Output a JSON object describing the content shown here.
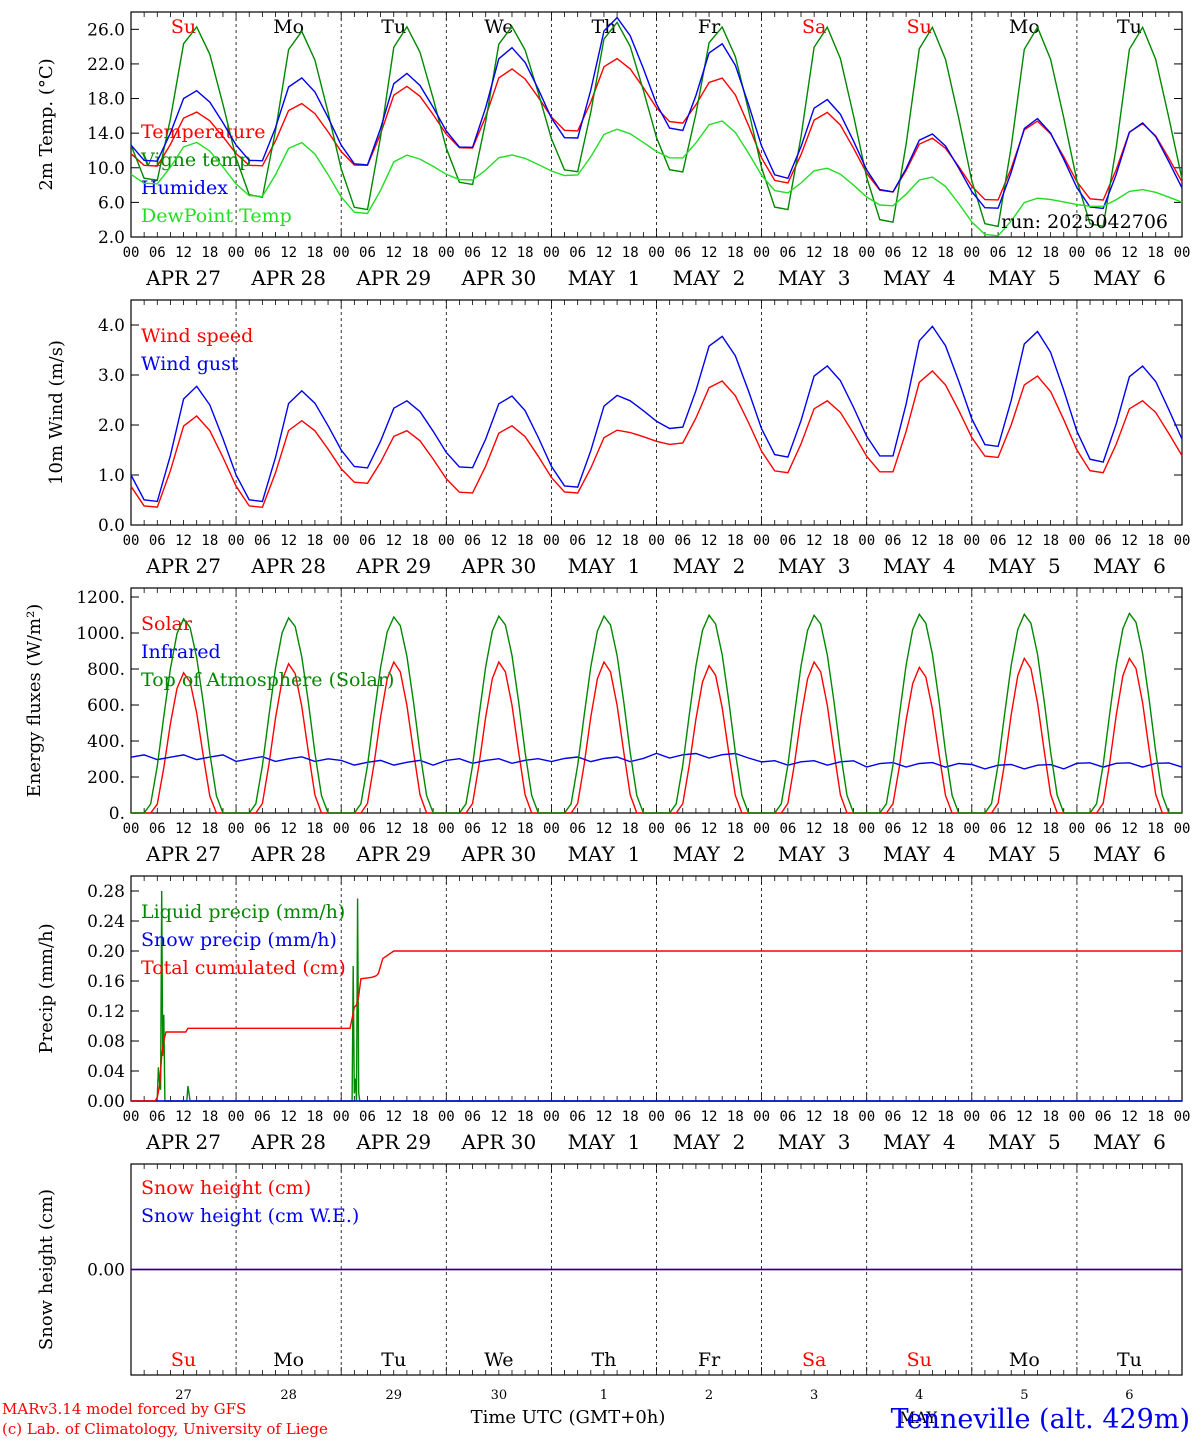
{
  "colors": {
    "red": "#ff0000",
    "blue": "#0000ee",
    "dgreen": "#008800",
    "lgreen": "#22dd22",
    "black": "#000000"
  },
  "run_label": "run: 2025042706",
  "hour_ticks": [
    "00",
    "06",
    "12",
    "18"
  ],
  "date_labels": [
    "APR 27",
    "APR 28",
    "APR 29",
    "APR 30",
    "MAY  1",
    "MAY  2",
    "MAY  3",
    "MAY  4",
    "MAY  5",
    "MAY  6"
  ],
  "weekdays": [
    {
      "label": "Su",
      "color": "#ff0000"
    },
    {
      "label": "Mo",
      "color": "#000000"
    },
    {
      "label": "Tu",
      "color": "#000000"
    },
    {
      "label": "We",
      "color": "#000000"
    },
    {
      "label": "Th",
      "color": "#000000"
    },
    {
      "label": "Fr",
      "color": "#000000"
    },
    {
      "label": "Sa",
      "color": "#ff0000"
    },
    {
      "label": "Su",
      "color": "#ff0000"
    },
    {
      "label": "Mo",
      "color": "#000000"
    },
    {
      "label": "Tu",
      "color": "#000000"
    }
  ],
  "bottom_day_numbers": [
    "27",
    "28",
    "29",
    "30",
    "1",
    "2",
    "3",
    "4",
    "5",
    "6"
  ],
  "footer": {
    "credit_line1": "MARv3.14 model forced by GFS",
    "credit_line2": "(c) Lab. of Climatology, University of Liege",
    "axis_label": "Time UTC (GMT+0h)",
    "month_label": "MAY",
    "station": "Tenneville (alt. 429m)"
  },
  "chart_data": [
    {
      "type": "line",
      "ylabel": "2m Temp. (°C)",
      "ylim": [
        2,
        28
      ],
      "yticks": [
        2,
        6,
        10,
        14,
        18,
        22,
        26
      ],
      "ytick_labels": [
        "2.0",
        "6.0",
        "10.0",
        "14.0",
        "18.0",
        "22.0",
        "26.0"
      ],
      "series": [
        {
          "name": "Temperature",
          "color": "#ff0000",
          "kind": "diurnal",
          "min": [
            10,
            10,
            10,
            12,
            14,
            15,
            8,
            7,
            6,
            6
          ],
          "max": [
            16.5,
            17.5,
            19.5,
            21.5,
            22.7,
            20.5,
            16.5,
            13.5,
            15.5,
            15.2
          ]
        },
        {
          "name": "Vigne temp",
          "color": "#008800",
          "kind": "diurnal",
          "min": [
            8,
            6,
            4.5,
            7.5,
            9,
            9,
            4.5,
            3,
            2.5,
            2.5
          ],
          "max": [
            26.5,
            26,
            26.5,
            26.5,
            27,
            26.5,
            26.5,
            26.5,
            26.5,
            26.5
          ]
        },
        {
          "name": "Humidex",
          "color": "#0000ee",
          "kind": "diurnal",
          "min": [
            10.5,
            10.5,
            10,
            12,
            13,
            14,
            8.5,
            7,
            5,
            5
          ],
          "max": [
            19,
            20.5,
            21,
            24,
            27.5,
            24.5,
            18,
            14,
            15.8,
            15.3
          ]
        },
        {
          "name": "DewPoint Temp",
          "color": "#22dd22",
          "kind": "diurnal",
          "min": [
            8,
            6.5,
            4.5,
            8.5,
            9,
            11,
            7,
            5.5,
            2,
            5.5
          ],
          "max": [
            13,
            13,
            11.5,
            11.5,
            14.5,
            15.5,
            10,
            9,
            6.5,
            7.5
          ]
        }
      ]
    },
    {
      "type": "line",
      "ylabel": "10m Wind (m/s)",
      "ylim": [
        0,
        4.5
      ],
      "yticks": [
        0,
        1,
        2,
        3,
        4
      ],
      "ytick_labels": [
        "0.0",
        "1.0",
        "2.0",
        "3.0",
        "4.0"
      ],
      "series": [
        {
          "name": "Wind speed",
          "color": "#ff0000",
          "kind": "diurnal",
          "min": [
            0.3,
            0.3,
            0.8,
            0.6,
            0.6,
            1.6,
            1.0,
            1.0,
            1.3,
            1.0
          ],
          "max": [
            2.2,
            2.1,
            1.9,
            2.0,
            1.9,
            2.9,
            2.5,
            3.1,
            3.0,
            2.5
          ]
        },
        {
          "name": "Wind gust",
          "color": "#0000ee",
          "kind": "diurnal",
          "min": [
            0.4,
            0.4,
            1.1,
            1.1,
            0.7,
            1.9,
            1.3,
            1.3,
            1.5,
            1.2
          ],
          "max": [
            2.8,
            2.7,
            2.5,
            2.6,
            2.6,
            3.8,
            3.2,
            4.0,
            3.9,
            3.2
          ]
        }
      ]
    },
    {
      "type": "line",
      "ylabel": "Energy fluxes (W/m²)",
      "ylim": [
        0,
        1250
      ],
      "yticks": [
        0,
        200,
        400,
        600,
        800,
        1000,
        1200
      ],
      "ytick_labels": [
        "0.",
        "200.",
        "400.",
        "600.",
        "800.",
        "1000.",
        "1200."
      ],
      "series": [
        {
          "name": "Solar",
          "color": "#ff0000",
          "kind": "solar",
          "peak": [
            780,
            830,
            840,
            840,
            840,
            820,
            840,
            810,
            860,
            860
          ]
        },
        {
          "name": "Infrared",
          "color": "#0000ee",
          "kind": "flat",
          "value": [
            310,
            300,
            280,
            290,
            300,
            320,
            280,
            270,
            260,
            270
          ]
        },
        {
          "name": "Top of Atmosphere (Solar)",
          "color": "#008800",
          "kind": "solar_toa",
          "peak": [
            1080,
            1085,
            1090,
            1095,
            1095,
            1100,
            1100,
            1105,
            1105,
            1110
          ]
        }
      ]
    },
    {
      "type": "line",
      "ylabel": "Precip (mm/h)",
      "ylim": [
        0,
        0.3
      ],
      "yticks": [
        0,
        0.04,
        0.08,
        0.12,
        0.16,
        0.2,
        0.24,
        0.28
      ],
      "ytick_labels": [
        "0.00",
        "0.04",
        "0.08",
        "0.12",
        "0.16",
        "0.20",
        "0.24",
        "0.28"
      ],
      "series": [
        {
          "name": "Liquid precip (mm/h)",
          "color": "#008800",
          "kind": "points",
          "x": [
            0,
            66,
            69,
            72,
            75,
            78,
            81,
            84,
            87,
            90,
            93,
            96,
            99,
            102,
            105,
            150,
            153,
            156,
            159,
            162,
            165,
            171,
            174,
            177,
            180,
            240,
            243,
            246,
            249,
            252,
            255,
            258,
            261,
            264,
            267,
            270,
            273,
            276,
            279,
            282,
            285,
            288,
            291,
            294,
            297,
            300,
            600,
            603,
            606,
            609,
            612,
            615,
            618,
            621,
            624,
            627,
            630,
            633,
            636,
            639,
            642,
            645,
            648,
            651,
            654,
            657,
            660,
            663,
            666,
            669,
            672,
            675,
            678,
            681,
            684,
            687,
            690,
            693,
            696,
            699,
            702,
            705,
            708,
            711,
            714,
            717,
            720,
            723,
            726,
            729,
            732,
            735,
            738,
            741,
            744,
            747,
            750,
            753,
            756,
            759,
            762,
            765,
            768,
            2880
          ],
          "y": [
            0,
            0,
            0,
            0.005,
            0.045,
            0.025,
            0.015,
            0.28,
            0.06,
            0.115,
            0,
            0,
            0,
            0,
            0,
            0,
            0,
            0.02,
            0.01,
            0,
            0,
            0,
            0,
            0,
            0,
            0,
            0,
            0,
            0,
            0,
            0,
            0,
            0,
            0,
            0,
            0,
            0,
            0,
            0,
            0,
            0,
            0,
            0,
            0,
            0,
            0,
            0,
            0,
            0,
            0.18,
            0.01,
            0.03,
            0,
            0.27,
            0.01,
            0,
            0,
            0,
            0,
            0,
            0,
            0,
            0,
            0,
            0,
            0,
            0,
            0,
            0,
            0,
            0,
            0,
            0,
            0,
            0,
            0,
            0,
            0,
            0,
            0,
            0,
            0,
            0,
            0,
            0,
            0,
            0,
            0,
            0,
            0,
            0,
            0,
            0,
            0,
            0,
            0,
            0,
            0,
            0,
            0,
            0,
            0,
            0,
            0
          ]
        },
        {
          "name": "Snow precip (mm/h)",
          "color": "#0000ee",
          "kind": "zero"
        },
        {
          "name": "Total cumulated (cm)",
          "color": "#ff0000",
          "kind": "steps",
          "x": [
            0,
            66,
            72,
            78,
            84,
            90,
            96,
            150,
            156,
            600,
            606,
            612,
            618,
            624,
            630,
            660,
            672,
            678,
            690,
            720,
            726,
            750,
            768,
            2880
          ],
          "y": [
            0,
            0,
            0.005,
            0.02,
            0.06,
            0.08,
            0.092,
            0.092,
            0.097,
            0.097,
            0.11,
            0.125,
            0.128,
            0.14,
            0.163,
            0.165,
            0.167,
            0.17,
            0.19,
            0.2,
            0.2,
            0.2,
            0.2,
            0.2
          ]
        }
      ]
    },
    {
      "type": "line",
      "ylabel": "Snow height (cm)",
      "ylim": [
        -1,
        1
      ],
      "yticks": [
        0
      ],
      "ytick_labels": [
        "0.00"
      ],
      "series": [
        {
          "name": "Snow height (cm)",
          "color": "#ff0000",
          "kind": "zero"
        },
        {
          "name": "Snow height (cm W.E.)",
          "color": "#0000ee",
          "kind": "zero"
        }
      ]
    }
  ]
}
